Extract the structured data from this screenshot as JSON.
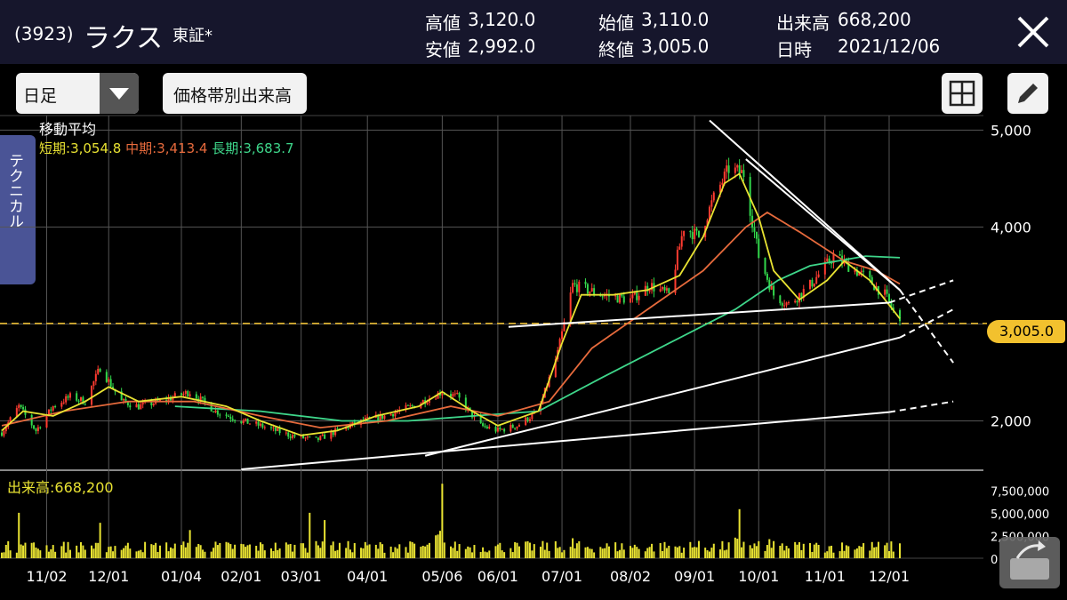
{
  "header": {
    "code": "(3923)",
    "name": "ラクス",
    "exchange": "東証*",
    "quote": [
      {
        "label": "高値",
        "value": "3,120.0"
      },
      {
        "label": "安値",
        "value": "2,992.0"
      },
      {
        "label": "始値",
        "value": "3,110.0"
      },
      {
        "label": "終値",
        "value": "3,005.0"
      },
      {
        "label": "出来高",
        "value": "668,200"
      },
      {
        "label": "日時",
        "value": "2021/12/06"
      }
    ]
  },
  "toolbar": {
    "period": "日足",
    "volume_profile_label": "価格帯別出来高",
    "layout_icon": "grid-icon",
    "draw_icon": "pencil-icon"
  },
  "side_tab": "テクニカル",
  "chart_data": {
    "type": "candlestick",
    "ma_title": "移動平均",
    "ma_legend": [
      {
        "name": "短期",
        "value": "3,054.8",
        "color": "#e8e232"
      },
      {
        "name": "中期",
        "value": "3,413.4",
        "color": "#e66a3c"
      },
      {
        "name": "長期",
        "value": "3,683.7",
        "color": "#3ed68a"
      }
    ],
    "y_ticks": [
      5000,
      4000,
      3000,
      2000
    ],
    "y_tick_labels": [
      "5,000",
      "4,000",
      "",
      "2,000"
    ],
    "ylim": [
      1500,
      5150
    ],
    "last_price": 3005.0,
    "last_price_label": "3,005.0",
    "x_labels": [
      "11/02",
      "12/01",
      "01/04",
      "02/01",
      "03/01",
      "04/01",
      "05/06",
      "06/01",
      "07/01",
      "08/02",
      "09/01",
      "10/01",
      "11/01",
      "12/01"
    ],
    "x_label_dates": [
      "2020-11-02",
      "2020-12-01",
      "2021-01-04",
      "2021-02-01",
      "2021-03-01",
      "2021-04-01",
      "2021-05-06",
      "2021-06-01",
      "2021-07-01",
      "2021-08-02",
      "2021-09-01",
      "2021-10-01",
      "2021-11-01",
      "2021-12-01"
    ],
    "x_range": [
      "2020-10-12",
      "2021-12-06"
    ],
    "price_path": [
      [
        "2020-10-12",
        1880
      ],
      [
        "2020-10-20",
        2150
      ],
      [
        "2020-10-28",
        1900
      ],
      [
        "2020-11-05",
        2150
      ],
      [
        "2020-11-13",
        2250
      ],
      [
        "2020-11-20",
        2200
      ],
      [
        "2020-11-27",
        2550
      ],
      [
        "2020-12-07",
        2200
      ],
      [
        "2020-12-15",
        2150
      ],
      [
        "2020-12-25",
        2200
      ],
      [
        "2021-01-08",
        2300
      ],
      [
        "2021-01-20",
        2100
      ],
      [
        "2021-02-01",
        2000
      ],
      [
        "2021-02-10",
        1950
      ],
      [
        "2021-02-24",
        1850
      ],
      [
        "2021-03-08",
        1800
      ],
      [
        "2021-03-18",
        1900
      ],
      [
        "2021-03-30",
        2000
      ],
      [
        "2021-04-09",
        2050
      ],
      [
        "2021-04-22",
        2150
      ],
      [
        "2021-05-06",
        2300
      ],
      [
        "2021-05-13",
        2250
      ],
      [
        "2021-05-24",
        1950
      ],
      [
        "2021-06-01",
        1900
      ],
      [
        "2021-06-10",
        1950
      ],
      [
        "2021-06-20",
        2100
      ],
      [
        "2021-06-29",
        2700
      ],
      [
        "2021-07-06",
        3400
      ],
      [
        "2021-07-20",
        3300
      ],
      [
        "2021-08-02",
        3250
      ],
      [
        "2021-08-11",
        3400
      ],
      [
        "2021-08-20",
        3300
      ],
      [
        "2021-08-27",
        4000
      ],
      [
        "2021-09-03",
        3900
      ],
      [
        "2021-09-10",
        4300
      ],
      [
        "2021-09-17",
        4600
      ],
      [
        "2021-09-24",
        4550
      ],
      [
        "2021-10-01",
        3700
      ],
      [
        "2021-10-08",
        3300
      ],
      [
        "2021-10-15",
        3200
      ],
      [
        "2021-10-25",
        3400
      ],
      [
        "2021-11-05",
        3700
      ],
      [
        "2021-11-12",
        3600
      ],
      [
        "2021-11-19",
        3500
      ],
      [
        "2021-11-29",
        3300
      ],
      [
        "2021-12-06",
        3005
      ]
    ],
    "ma_short": [
      [
        "2020-10-12",
        1900
      ],
      [
        "2020-10-22",
        2100
      ],
      [
        "2020-11-05",
        2050
      ],
      [
        "2020-11-20",
        2200
      ],
      [
        "2020-12-01",
        2350
      ],
      [
        "2020-12-15",
        2200
      ],
      [
        "2021-01-04",
        2250
      ],
      [
        "2021-01-25",
        2150
      ],
      [
        "2021-02-10",
        2000
      ],
      [
        "2021-03-01",
        1850
      ],
      [
        "2021-03-18",
        1900
      ],
      [
        "2021-04-05",
        2050
      ],
      [
        "2021-04-25",
        2150
      ],
      [
        "2021-05-06",
        2300
      ],
      [
        "2021-05-20",
        2100
      ],
      [
        "2021-06-01",
        1950
      ],
      [
        "2021-06-20",
        2100
      ],
      [
        "2021-07-01",
        2800
      ],
      [
        "2021-07-10",
        3300
      ],
      [
        "2021-07-25",
        3300
      ],
      [
        "2021-08-10",
        3350
      ],
      [
        "2021-08-25",
        3500
      ],
      [
        "2021-09-05",
        3900
      ],
      [
        "2021-09-15",
        4450
      ],
      [
        "2021-09-22",
        4550
      ],
      [
        "2021-10-01",
        4100
      ],
      [
        "2021-10-08",
        3550
      ],
      [
        "2021-10-20",
        3250
      ],
      [
        "2021-11-02",
        3450
      ],
      [
        "2021-11-10",
        3650
      ],
      [
        "2021-11-22",
        3450
      ],
      [
        "2021-12-06",
        3055
      ]
    ],
    "ma_mid": [
      [
        "2020-10-12",
        1950
      ],
      [
        "2020-11-10",
        2100
      ],
      [
        "2020-12-10",
        2200
      ],
      [
        "2021-01-10",
        2200
      ],
      [
        "2021-02-10",
        2050
      ],
      [
        "2021-03-10",
        1930
      ],
      [
        "2021-04-10",
        2000
      ],
      [
        "2021-05-10",
        2150
      ],
      [
        "2021-06-01",
        2050
      ],
      [
        "2021-06-25",
        2200
      ],
      [
        "2021-07-15",
        2750
      ],
      [
        "2021-08-10",
        3150
      ],
      [
        "2021-09-05",
        3550
      ],
      [
        "2021-09-25",
        4000
      ],
      [
        "2021-10-05",
        4150
      ],
      [
        "2021-10-20",
        3950
      ],
      [
        "2021-11-10",
        3650
      ],
      [
        "2021-11-25",
        3550
      ],
      [
        "2021-12-06",
        3413
      ]
    ],
    "ma_long": [
      [
        "2021-01-01",
        2150
      ],
      [
        "2021-02-10",
        2100
      ],
      [
        "2021-03-20",
        2000
      ],
      [
        "2021-04-20",
        2000
      ],
      [
        "2021-05-20",
        2050
      ],
      [
        "2021-06-20",
        2100
      ],
      [
        "2021-07-20",
        2450
      ],
      [
        "2021-08-20",
        2800
      ],
      [
        "2021-09-20",
        3150
      ],
      [
        "2021-10-10",
        3450
      ],
      [
        "2021-10-25",
        3600
      ],
      [
        "2021-11-20",
        3700
      ],
      [
        "2021-12-06",
        3684
      ]
    ],
    "trend_lines": [
      {
        "from": [
          "2021-09-08",
          5100
        ],
        "to": [
          "2021-12-06",
          3350
        ],
        "extend": [
          "2021-12-31",
          2600
        ]
      },
      {
        "from": [
          "2021-06-06",
          2970
        ],
        "to": [
          "2021-12-01",
          3220
        ],
        "extend": [
          "2021-12-31",
          3450
        ]
      },
      {
        "from": [
          "2021-04-28",
          1640
        ],
        "to": [
          "2021-12-06",
          2860
        ],
        "extend": [
          "2021-12-31",
          3150
        ]
      },
      {
        "from": [
          "2021-02-01",
          1500
        ],
        "to": [
          "2021-12-01",
          2090
        ],
        "extend": [
          "2021-12-31",
          2200
        ]
      },
      {
        "from": [
          "2021-09-25",
          4700
        ],
        "to": [
          "2021-12-06",
          3350
        ],
        "extend": null
      }
    ],
    "volume": {
      "label": "出来高:668,200",
      "y_ticks": [
        7500000,
        5000000,
        2500000,
        0
      ],
      "y_tick_labels": [
        "7,500,000",
        "5,000,000",
        "2,500,000",
        "0"
      ],
      "ylim": [
        0,
        9000000
      ],
      "peaks": [
        [
          "2020-10-20",
          5000000
        ],
        [
          "2020-11-27",
          3900000
        ],
        [
          "2021-01-08",
          3100000
        ],
        [
          "2021-03-05",
          5000000
        ],
        [
          "2021-03-12",
          4200000
        ],
        [
          "2021-05-06",
          8200000
        ],
        [
          "2021-07-06",
          2200000
        ],
        [
          "2021-09-03",
          1900000
        ],
        [
          "2021-09-22",
          5400000
        ],
        [
          "2021-10-06",
          2100000
        ],
        [
          "2021-11-12",
          1300000
        ]
      ]
    }
  }
}
